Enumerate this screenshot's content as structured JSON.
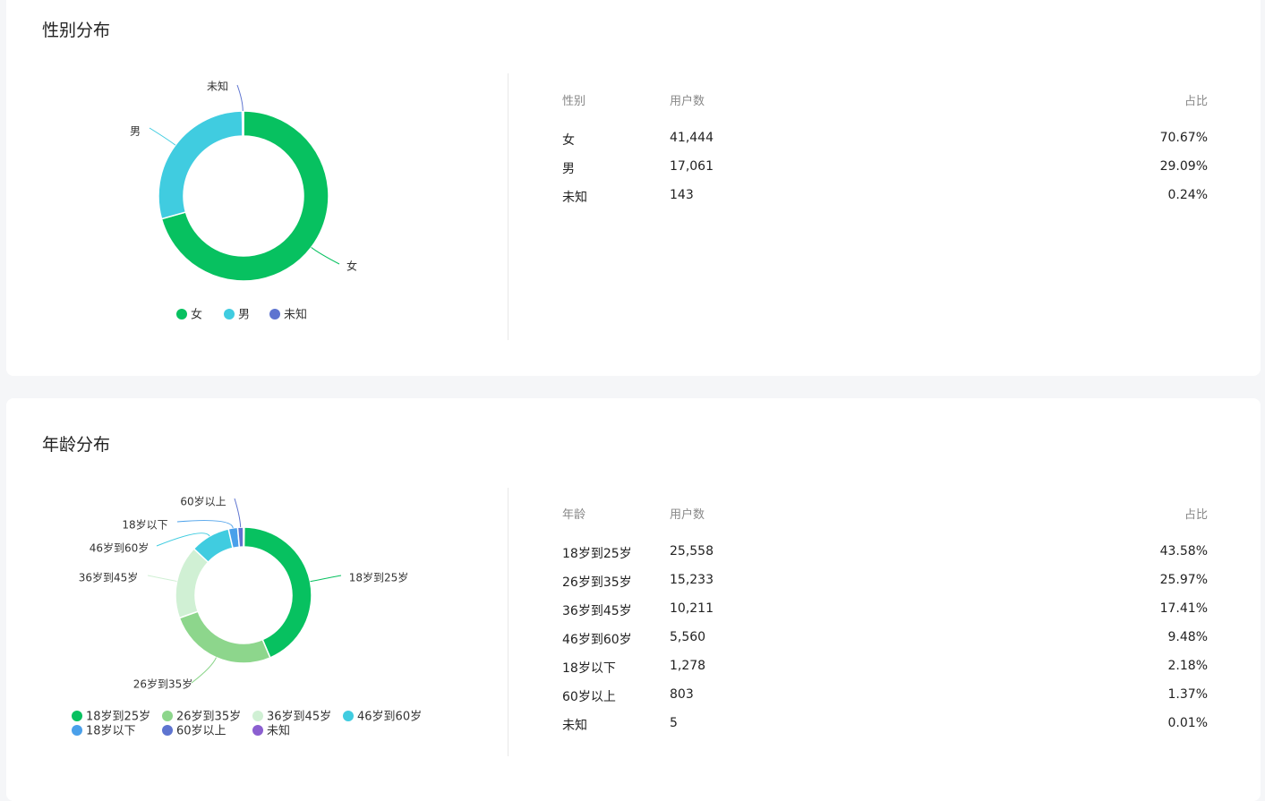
{
  "gender": {
    "title": "性别分布",
    "headers": [
      "性别",
      "用户数",
      "占比"
    ],
    "rows": [
      [
        "女",
        "41,444",
        "70.67%"
      ],
      [
        "男",
        "17,061",
        "29.09%"
      ],
      [
        "未知",
        "143",
        "0.24%"
      ]
    ]
  },
  "age": {
    "title": "年龄分布",
    "headers": [
      "年龄",
      "用户数",
      "占比"
    ],
    "rows": [
      [
        "18岁到25岁",
        "25,558",
        "43.58%"
      ],
      [
        "26岁到35岁",
        "15,233",
        "25.97%"
      ],
      [
        "36岁到45岁",
        "10,211",
        "17.41%"
      ],
      [
        "46岁到60岁",
        "5,560",
        "9.48%"
      ],
      [
        "18岁以下",
        "1,278",
        "2.18%"
      ],
      [
        "60岁以上",
        "803",
        "1.37%"
      ],
      [
        "未知",
        "5",
        "0.01%"
      ]
    ]
  },
  "chart_data": [
    {
      "type": "pie",
      "variant": "donut",
      "categories": [
        "女",
        "男",
        "未知"
      ],
      "values": [
        41444,
        17061,
        143
      ],
      "colors": [
        "#07c160",
        "#40cce0",
        "#5e74d0"
      ],
      "legend": "bottom"
    },
    {
      "type": "pie",
      "variant": "donut",
      "categories": [
        "18岁到25岁",
        "26岁到35岁",
        "36岁到45岁",
        "46岁到60岁",
        "18岁以下",
        "60岁以上",
        "未知"
      ],
      "values": [
        25558,
        15233,
        10211,
        5560,
        1278,
        803,
        5
      ],
      "colors": [
        "#07c160",
        "#8dd68c",
        "#d0f0d4",
        "#40cce0",
        "#4aa0ea",
        "#5e74d0",
        "#8b5fd0"
      ],
      "legend": "bottom"
    }
  ]
}
